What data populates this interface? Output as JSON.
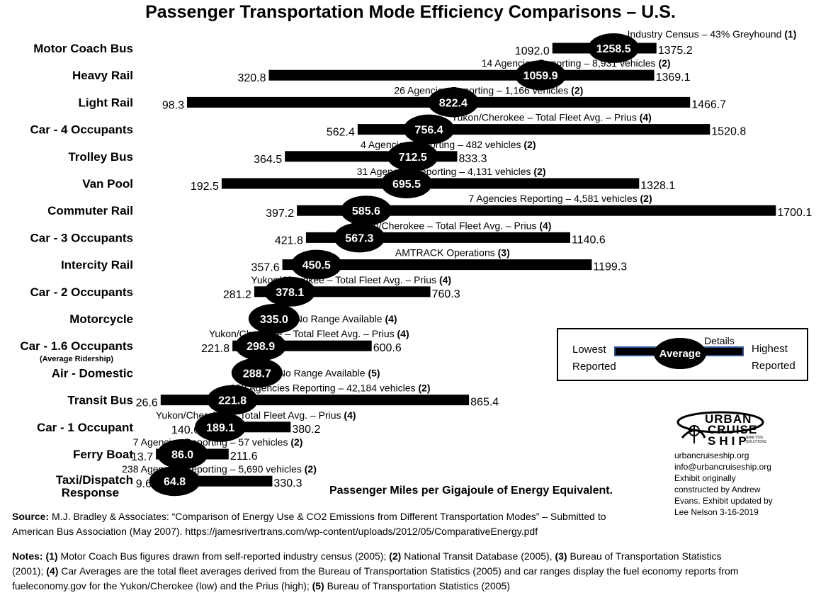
{
  "title": "Passenger Transportation Mode Efficiency Comparisons – U.S.",
  "colors": {
    "bar": "#000000",
    "average_fill": "#000000",
    "average_text": "#ffffff",
    "legend_border": "#2f5597"
  },
  "chart_data": {
    "type": "bar",
    "subtype": "range bar with average marker",
    "xlabel": "Passenger Miles per Gigajoule of Energy Equivalent.",
    "categories": [
      "Motor Coach Bus",
      "Heavy Rail",
      "Light Rail",
      "Car - 4 Occupants",
      "Trolley Bus",
      "Van Pool",
      "Commuter Rail",
      "Car - 3 Occupants",
      "Intercity Rail",
      "Car - 2 Occupants",
      "Motorcycle",
      "Car - 1.6 Occupants",
      "Air - Domestic",
      "Transit Bus",
      "Car - 1 Occupant",
      "Ferry Boat",
      "Taxi/Dispatch Response"
    ],
    "category_subtitles": {
      "Car - 1.6 Occupants": "(Average Ridership)"
    },
    "rows": [
      {
        "label": "Motor Coach Bus",
        "low": 1092.0,
        "avg": 1258.5,
        "high": 1375.2,
        "low_text": "1092.0",
        "avg_text": "1258.5",
        "high_text": "1375.2",
        "detail": "Industry Census – 43% Greyhound",
        "ref": "(1)"
      },
      {
        "label": "Heavy Rail",
        "low": 320.8,
        "avg": 1059.9,
        "high": 1369.1,
        "low_text": "320.8",
        "avg_text": "1059.9",
        "high_text": "1369.1",
        "detail": "14 Agencies Reporting – 8,931 vehicles",
        "ref": "(2)"
      },
      {
        "label": "Light Rail",
        "low": 98.3,
        "avg": 822.4,
        "high": 1466.7,
        "low_text": "98.3",
        "avg_text": "822.4",
        "high_text": "1466.7",
        "detail": "26 Agencies Reporting – 1,166 vehicles",
        "ref": "(2)"
      },
      {
        "label": "Car - 4 Occupants",
        "low": 562.4,
        "avg": 756.4,
        "high": 1520.8,
        "low_text": "562.4",
        "avg_text": "756.4",
        "high_text": "1520.8",
        "detail": "Yukon/Cherokee – Total Fleet Avg. – Prius",
        "ref": "(4)"
      },
      {
        "label": "Trolley Bus",
        "low": 364.5,
        "avg": 712.5,
        "high": 833.3,
        "low_text": "364.5",
        "avg_text": "712.5",
        "high_text": "833.3",
        "detail": "4 Agencies Reporting – 482 vehicles",
        "ref": "(2)"
      },
      {
        "label": "Van Pool",
        "low": 192.5,
        "avg": 695.5,
        "high": 1328.1,
        "low_text": "192.5",
        "avg_text": "695.5",
        "high_text": "1328.1",
        "detail": "31 Agencies Reporting – 4,131 vehicles",
        "ref": "(2)"
      },
      {
        "label": "Commuter Rail",
        "low": 397.2,
        "avg": 585.6,
        "high": 1700.1,
        "low_text": "397.2",
        "avg_text": "585.6",
        "high_text": "1700.1",
        "detail": "7 Agencies Reporting – 4,581 vehicles",
        "ref": "(2)"
      },
      {
        "label": "Car - 3 Occupants",
        "low": 421.8,
        "avg": 567.3,
        "high": 1140.6,
        "low_text": "421.8",
        "avg_text": "567.3",
        "high_text": "1140.6",
        "detail": "Yukon/Cherokee – Total Fleet Avg. – Prius",
        "ref": "(4)"
      },
      {
        "label": "Intercity Rail",
        "low": 357.6,
        "avg": 450.5,
        "high": 1199.3,
        "low_text": "357.6",
        "avg_text": "450.5",
        "high_text": "1199.3",
        "detail": "AMTRACK Operations",
        "ref": "(3)"
      },
      {
        "label": "Car - 2 Occupants",
        "low": 281.2,
        "avg": 378.1,
        "high": 760.3,
        "low_text": "281.2",
        "avg_text": "378.1",
        "high_text": "760.3",
        "detail": "Yukon/Cherokee – Total Fleet Avg. – Prius",
        "ref": "(4)"
      },
      {
        "label": "Motorcycle",
        "low": null,
        "avg": 335.0,
        "high": null,
        "low_text": "",
        "avg_text": "335.0",
        "high_text": "",
        "detail": "No Range Available",
        "ref": "(4)"
      },
      {
        "label": "Car - 1.6 Occupants",
        "low": 221.8,
        "avg": 298.9,
        "high": 600.6,
        "low_text": "221.8",
        "avg_text": "298.9",
        "high_text": "600.6",
        "detail": "Yukon/Cherokee – Total Fleet Avg. – Prius",
        "ref": "(4)"
      },
      {
        "label": "Air - Domestic",
        "low": null,
        "avg": 288.7,
        "high": null,
        "low_text": "",
        "avg_text": "288.7",
        "high_text": "",
        "detail": "No Range Available",
        "ref": "(5)"
      },
      {
        "label": "Transit Bus",
        "low": 26.6,
        "avg": 221.8,
        "high": 865.4,
        "low_text": "26.6",
        "avg_text": "221.8",
        "high_text": "865.4",
        "detail": "353 Agencies Reporting – 42,184 vehicles",
        "ref": "(2)"
      },
      {
        "label": "Car - 1 Occupant",
        "low": 140.6,
        "avg": 189.1,
        "high": 380.2,
        "low_text": "140.6",
        "avg_text": "189.1",
        "high_text": "380.2",
        "detail": "Yukon/Cherokee – Total Fleet Avg. – Prius",
        "ref": "(4)"
      },
      {
        "label": "Ferry Boat",
        "low": 13.7,
        "avg": 86.0,
        "high": 211.6,
        "low_text": "13.7",
        "avg_text": "86.0",
        "high_text": "211.6",
        "detail": "7 Agencies Reporting – 57 vehicles",
        "ref": "(2)"
      },
      {
        "label": "Taxi/Dispatch Response",
        "low": 9.6,
        "avg": 64.8,
        "high": 330.3,
        "low_text": "9.6",
        "avg_text": "64.8",
        "high_text": "330.3",
        "detail": "238 Agencies Reporting – 5,690 vehicles",
        "ref": "(2)"
      }
    ],
    "grid": false
  },
  "legend": {
    "details": "Details",
    "lowest": "Lowest",
    "reported_left": "Reported",
    "average": "Average",
    "highest": "Highest",
    "reported_right": "Reported"
  },
  "logo": {
    "line1": "URBAN",
    "line2": "CRUISE",
    "line3": "SHIP",
    "tag": "ANALYSIS SOLUTIONS"
  },
  "contact": {
    "url": "urbancruiseship.org",
    "email": "info@urbancruiseship.org",
    "credit1": "Exhibit originally",
    "credit2": "constructed by Andrew",
    "credit3": "Evans. Exhibit updated by",
    "credit4": "Lee Nelson 3-16-2019"
  },
  "source": {
    "label": "Source:",
    "line1": " M.J. Bradley & Associates: “Comparison of Energy Use & CO2 Emissions from Different Transportation Modes” – Submitted to",
    "line2": "American Bus Association (May 2007). https://jamesrivertrans.com/wp-content/uploads/2012/05/ComparativeEnergy.pdf"
  },
  "notes": {
    "label": "Notes:",
    "n1": "(1)",
    "t1": " Motor Coach Bus figures drawn from self-reported industry census (2005); ",
    "n2": "(2)",
    "t2": " National Transit Database (2005), ",
    "n3": "(3)",
    "t3": " Bureau of Transportation Statistics",
    "t3b": "(2001); ",
    "n4": "(4)",
    "t4": " Car Averages are the total fleet averages derived from the Bureau of Transportation Statistics (2005) and car ranges display the fuel economy reports from",
    "t4b": "fueleconomy.gov for the Yukon/Cherokee (low) and the Prius (high); ",
    "n5": "(5)",
    "t5": " Bureau of Transportation Statistics (2005)"
  }
}
